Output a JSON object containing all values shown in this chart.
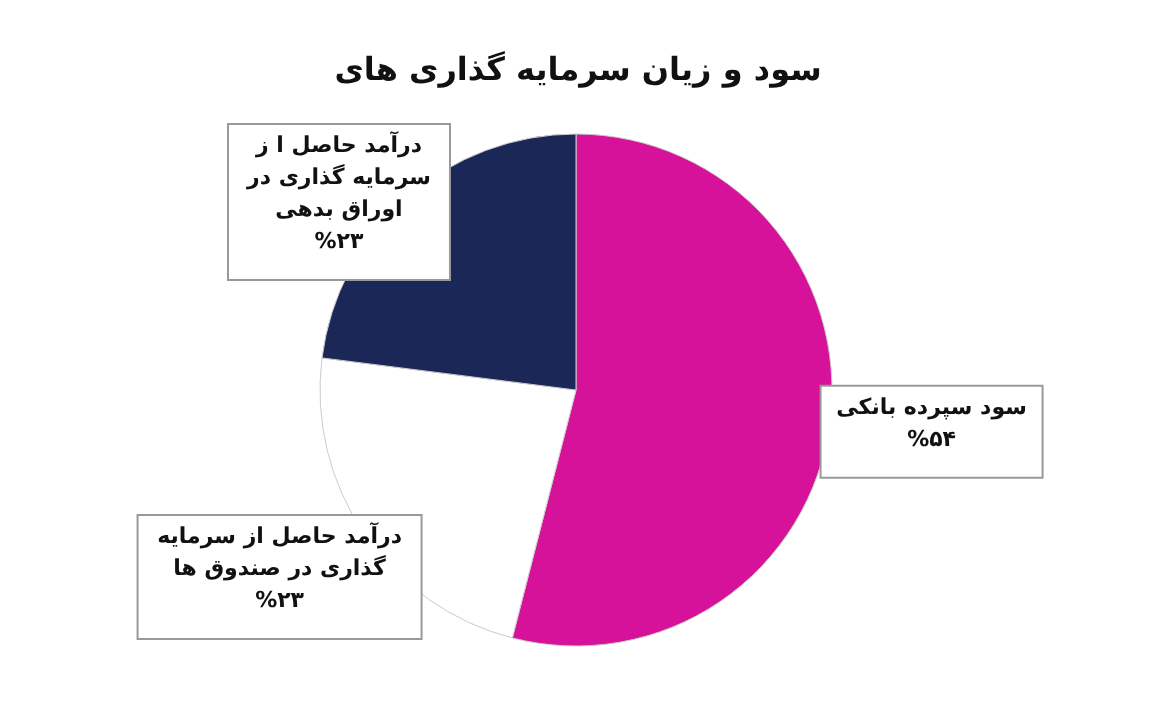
{
  "chart_data": {
    "type": "pie",
    "title": "سود و زیان سرمایه گذاری های",
    "categories": [
      "سود سپرده بانکی",
      "درآمد حاصل از سرمایه گذاری در صندوق ها",
      "درآمد حاصل ا ز سرمایه گذاری در اوراق بدهی"
    ],
    "values": [
      54,
      23,
      23
    ],
    "value_labels": [
      "%۵۴",
      "%۲۳",
      "%۲۳"
    ],
    "colors": [
      "#d6129a",
      "#ffffff",
      "#1b2857"
    ]
  }
}
